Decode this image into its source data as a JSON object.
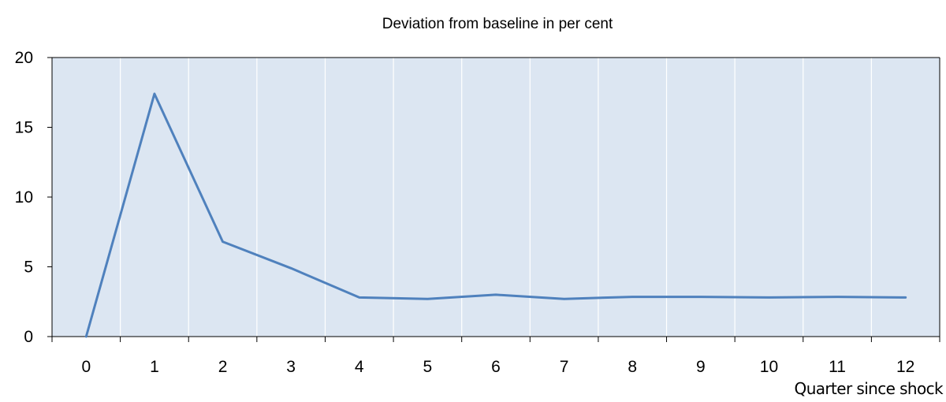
{
  "chart_data": {
    "type": "line",
    "title": "Deviation from baseline in per cent",
    "xlabel": "Quarter since shock",
    "ylabel": "",
    "categories": [
      "0",
      "1",
      "2",
      "3",
      "4",
      "5",
      "6",
      "7",
      "8",
      "9",
      "10",
      "11",
      "12"
    ],
    "x": [
      0,
      1,
      2,
      3,
      4,
      5,
      6,
      7,
      8,
      9,
      10,
      11,
      12
    ],
    "series": [
      {
        "color": "#4f81bd",
        "values": [
          0,
          17.4,
          6.8,
          4.9,
          2.8,
          2.7,
          3.0,
          2.7,
          2.85,
          2.85,
          2.8,
          2.85,
          2.8
        ]
      }
    ],
    "ylim": [
      0,
      20
    ],
    "yticks": [
      "0",
      "5",
      "10",
      "15",
      "20"
    ],
    "grid": "vertical",
    "legend": "none",
    "plot_background": "#dce6f2"
  }
}
